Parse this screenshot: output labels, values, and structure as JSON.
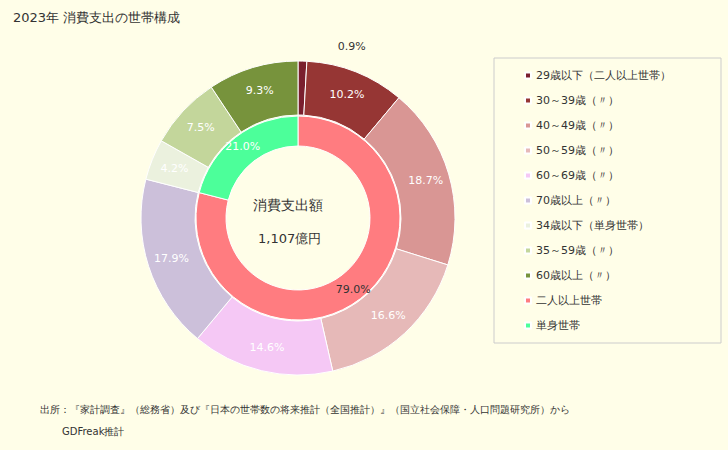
{
  "chart_data": {
    "type": "pie",
    "title": "2023年 消費支出の世帯構成",
    "rings": [
      {
        "categories": [
          "二人以上世帯",
          "単身世帯"
        ],
        "values": [
          79.0,
          21.0
        ],
        "value_labels": [
          "79.0%",
          "21.0%"
        ],
        "colors": [
          "#ff7c80",
          "#4cff9a"
        ]
      },
      {
        "categories": [
          "29歳以下（二人以上世帯）",
          "30～39歳（〃）",
          "40～49歳（〃）",
          "50～59歳（〃）",
          "60～69歳（〃）",
          "70歳以上（〃）",
          "34歳以下（単身世帯）",
          "35～59歳（〃）",
          "60歳以上（〃）"
        ],
        "values": [
          0.9,
          10.2,
          18.7,
          16.6,
          14.6,
          17.9,
          4.2,
          7.5,
          9.3
        ],
        "value_labels": [
          "0.9%",
          "10.2%",
          "18.7%",
          "16.6%",
          "14.6%",
          "17.9%",
          "4.2%",
          "7.5%",
          "9.3%"
        ],
        "colors": [
          "#7a1f2e",
          "#963634",
          "#d99694",
          "#e6b9b8",
          "#f5c8f5",
          "#ccc0da",
          "#ebf1de",
          "#c3d69b",
          "#77933c"
        ]
      }
    ],
    "legend": "right",
    "data_labels": true,
    "annotations": {
      "center": [
        "消費支出額",
        "1,107億円"
      ],
      "source": [
        "出所：『家計調査』（総務省）及び『日本の世帯数の将来推計（全国推計）』（国立社会保障・人口問題研究所）から",
        "GDFreak推計"
      ]
    }
  }
}
